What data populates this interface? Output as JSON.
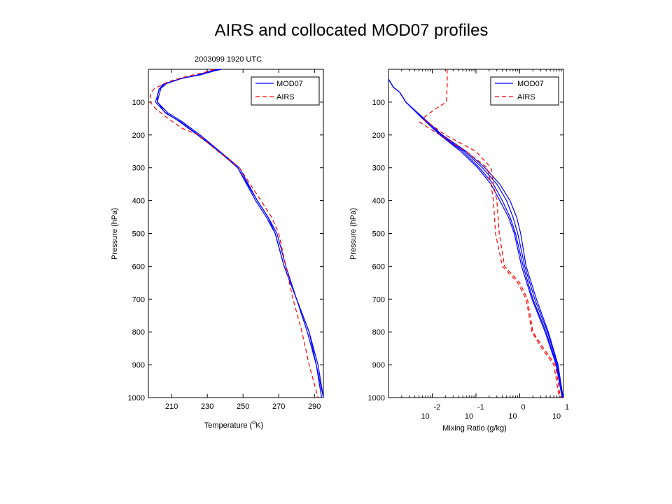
{
  "page": {
    "title": "AIRS and collocated MOD07 profiles"
  },
  "chart_data": [
    {
      "type": "line",
      "subtitle": "2003099 1920 UTC",
      "xlabel": "Temperature (",
      "xlabel_sup": "o",
      "xlabel_end": "K)",
      "ylabel": "Pressure (hPa)",
      "xlim": [
        197,
        295
      ],
      "ylim": [
        1000,
        0
      ],
      "xticks": [
        210,
        230,
        250,
        270,
        290
      ],
      "yticks": [
        100,
        200,
        300,
        400,
        500,
        600,
        700,
        800,
        900,
        1000
      ],
      "legend": {
        "position": "top-right",
        "entries": [
          "MOD07",
          "AIRS"
        ]
      },
      "grid": false,
      "series": [
        {
          "name": "MOD07",
          "color": "#0000ff",
          "dash": "solid",
          "points": [
            [
              237,
              0
            ],
            [
              233,
              5
            ],
            [
              225,
              18
            ],
            [
              215,
              28
            ],
            [
              206,
              45
            ],
            [
              203,
              60
            ],
            [
              202,
              80
            ],
            [
              201,
              100
            ],
            [
              207,
              135
            ],
            [
              215,
              160
            ],
            [
              225,
              200
            ],
            [
              237,
              250
            ],
            [
              247,
              300
            ],
            [
              258,
              400
            ],
            [
              264,
              450
            ],
            [
              268,
              500
            ],
            [
              273,
              600
            ],
            [
              280,
              700
            ],
            [
              287,
              800
            ],
            [
              291,
              900
            ],
            [
              295,
              1000
            ]
          ]
        },
        {
          "name": "MOD07",
          "color": "#0000ff",
          "dash": "solid",
          "points": [
            [
              236,
              0
            ],
            [
              232,
              5
            ],
            [
              224,
              18
            ],
            [
              214,
              30
            ],
            [
              205,
              46
            ],
            [
              203,
              62
            ],
            [
              202,
              82
            ],
            [
              202,
              100
            ],
            [
              208,
              133
            ],
            [
              216,
              160
            ],
            [
              226,
              200
            ],
            [
              237,
              250
            ],
            [
              248,
              300
            ],
            [
              258,
              400
            ],
            [
              264,
              450
            ],
            [
              269,
              500
            ],
            [
              274,
              600
            ],
            [
              280,
              700
            ],
            [
              286,
              800
            ],
            [
              291,
              900
            ],
            [
              294,
              1000
            ]
          ]
        },
        {
          "name": "MOD07",
          "color": "#0000ff",
          "dash": "solid",
          "points": [
            [
              238,
              0
            ],
            [
              234,
              5
            ],
            [
              226,
              17
            ],
            [
              216,
              27
            ],
            [
              207,
              44
            ],
            [
              204,
              58
            ],
            [
              203,
              78
            ],
            [
              202,
              98
            ],
            [
              206,
              130
            ],
            [
              214,
              158
            ],
            [
              224,
              198
            ],
            [
              236,
              248
            ],
            [
              247,
              300
            ],
            [
              257,
              400
            ],
            [
              263,
              450
            ],
            [
              268,
              500
            ],
            [
              273,
              600
            ],
            [
              280,
              700
            ],
            [
              287,
              800
            ],
            [
              292,
              900
            ],
            [
              295,
              1000
            ]
          ]
        },
        {
          "name": "AIRS",
          "color": "#ff0000",
          "dash": "6,4",
          "points": [
            [
              234,
              0
            ],
            [
              228,
              10
            ],
            [
              218,
              22
            ],
            [
              208,
              38
            ],
            [
              200,
              60
            ],
            [
              198,
              80
            ],
            [
              198,
              100
            ],
            [
              201,
              120
            ],
            [
              208,
              150
            ],
            [
              216,
              180
            ],
            [
              225,
              200
            ],
            [
              236,
              250
            ],
            [
              248,
              300
            ],
            [
              260,
              400
            ],
            [
              266,
              450
            ],
            [
              270,
              500
            ],
            [
              274,
              600
            ],
            [
              278,
              700
            ],
            [
              283,
              800
            ],
            [
              287,
              900
            ],
            [
              292,
              1000
            ]
          ]
        }
      ]
    },
    {
      "type": "line",
      "xlabel": "Mixing Ratio (g/kg)",
      "ylabel": "Pressure (hPa)",
      "xscale": "log",
      "xlim": [
        0.001,
        10
      ],
      "ylim": [
        1000,
        0
      ],
      "xticks": [
        {
          "base": "10",
          "exp": "-2",
          "value": 0.01
        },
        {
          "base": "10",
          "exp": "-1",
          "value": 0.1
        },
        {
          "base": "10",
          "exp": "0",
          "value": 1
        },
        {
          "base": "10",
          "exp": "1",
          "value": 10
        }
      ],
      "yticks": [
        100,
        200,
        300,
        400,
        500,
        600,
        700,
        800,
        900,
        1000
      ],
      "legend": {
        "position": "top-right",
        "entries": [
          "MOD07",
          "AIRS"
        ]
      },
      "grid": false,
      "series": [
        {
          "name": "MOD07",
          "color": "#0000ff",
          "dash": "solid",
          "points": [
            [
              0.001,
              30
            ],
            [
              0.0013,
              55
            ],
            [
              0.0018,
              70
            ],
            [
              0.0025,
              100
            ],
            [
              0.006,
              150
            ],
            [
              0.015,
              200
            ],
            [
              0.05,
              250
            ],
            [
              0.12,
              300
            ],
            [
              0.25,
              350
            ],
            [
              0.4,
              400
            ],
            [
              0.6,
              450
            ],
            [
              0.8,
              500
            ],
            [
              1.2,
              600
            ],
            [
              2.0,
              700
            ],
            [
              4.0,
              800
            ],
            [
              7.0,
              900
            ],
            [
              9.5,
              1000
            ]
          ]
        },
        {
          "name": "MOD07",
          "color": "#0000ff",
          "dash": "solid",
          "points": [
            [
              0.001,
              30
            ],
            [
              0.0013,
              55
            ],
            [
              0.0018,
              70
            ],
            [
              0.0025,
              100
            ],
            [
              0.006,
              150
            ],
            [
              0.016,
              200
            ],
            [
              0.055,
              250
            ],
            [
              0.14,
              300
            ],
            [
              0.3,
              350
            ],
            [
              0.5,
              400
            ],
            [
              0.7,
              450
            ],
            [
              0.9,
              500
            ],
            [
              1.3,
              600
            ],
            [
              2.2,
              700
            ],
            [
              4.3,
              800
            ],
            [
              7.3,
              900
            ],
            [
              9.7,
              1000
            ]
          ]
        },
        {
          "name": "MOD07",
          "color": "#0000ff",
          "dash": "solid",
          "points": [
            [
              0.001,
              30
            ],
            [
              0.0013,
              55
            ],
            [
              0.0018,
              70
            ],
            [
              0.0025,
              100
            ],
            [
              0.0065,
              150
            ],
            [
              0.017,
              200
            ],
            [
              0.06,
              250
            ],
            [
              0.16,
              300
            ],
            [
              0.35,
              350
            ],
            [
              0.6,
              400
            ],
            [
              0.85,
              450
            ],
            [
              1.05,
              500
            ],
            [
              1.4,
              600
            ],
            [
              2.4,
              700
            ],
            [
              4.5,
              800
            ],
            [
              7.5,
              900
            ],
            [
              9.8,
              1000
            ]
          ]
        },
        {
          "name": "MOD07",
          "color": "#0000ff",
          "dash": "solid",
          "points": [
            [
              0.001,
              30
            ],
            [
              0.0013,
              55
            ],
            [
              0.0018,
              70
            ],
            [
              0.0025,
              100
            ],
            [
              0.006,
              150
            ],
            [
              0.015,
              200
            ],
            [
              0.045,
              250
            ],
            [
              0.11,
              300
            ],
            [
              0.22,
              350
            ],
            [
              0.35,
              400
            ],
            [
              0.55,
              450
            ],
            [
              0.75,
              500
            ],
            [
              1.1,
              600
            ],
            [
              1.9,
              700
            ],
            [
              3.8,
              800
            ],
            [
              6.8,
              900
            ],
            [
              9.3,
              1000
            ]
          ]
        },
        {
          "name": "AIRS",
          "color": "#ff0000",
          "dash": "6,4",
          "points": [
            [
              0.022,
              0
            ],
            [
              0.022,
              50
            ],
            [
              0.021,
              100
            ],
            [
              0.012,
              120
            ],
            [
              0.006,
              150
            ],
            [
              0.02,
              200
            ],
            [
              0.1,
              250
            ],
            [
              0.22,
              300
            ],
            [
              0.25,
              350
            ],
            [
              0.3,
              400
            ],
            [
              0.32,
              450
            ],
            [
              0.34,
              500
            ],
            [
              0.45,
              600
            ],
            [
              1.0,
              650
            ],
            [
              1.5,
              700
            ],
            [
              2.0,
              800
            ],
            [
              3.5,
              850
            ],
            [
              6.5,
              900
            ],
            [
              8.5,
              1000
            ]
          ]
        },
        {
          "name": "AIRS",
          "color": "#ff0000",
          "dash": "6,4",
          "points": [
            [
              0.005,
              160
            ],
            [
              0.015,
              200
            ],
            [
              0.06,
              250
            ],
            [
              0.18,
              300
            ],
            [
              0.22,
              350
            ],
            [
              0.25,
              400
            ],
            [
              0.28,
              500
            ],
            [
              0.4,
              600
            ],
            [
              0.9,
              650
            ],
            [
              1.4,
              700
            ],
            [
              1.9,
              800
            ],
            [
              3.2,
              850
            ],
            [
              6.0,
              900
            ],
            [
              8.0,
              1000
            ]
          ]
        }
      ]
    }
  ]
}
